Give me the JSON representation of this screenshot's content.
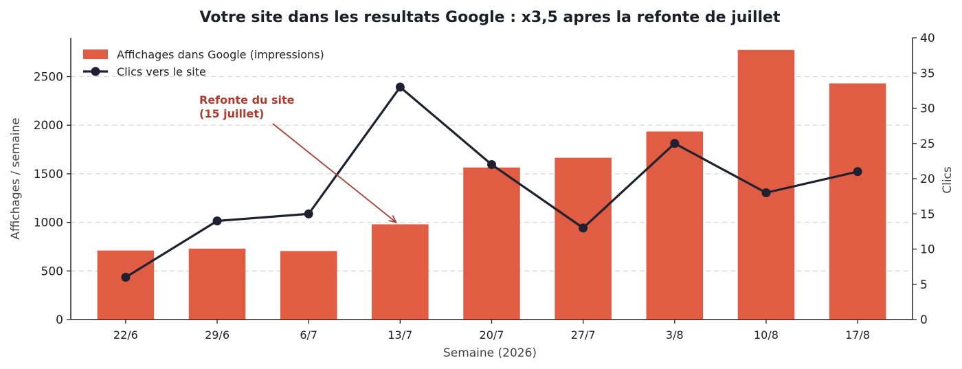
{
  "chart_data": {
    "type": "bar",
    "title": "Votre site dans les resultats Google : x3,5 apres la refonte de juillet",
    "xlabel": "Semaine (2026)",
    "ylabel": "Affichages / semaine",
    "ylabel_right": "Clics",
    "categories": [
      "22/6",
      "29/6",
      "6/7",
      "13/7",
      "20/7",
      "27/7",
      "3/8",
      "10/8",
      "17/8"
    ],
    "series": [
      {
        "name": "Affichages dans Google (impressions)",
        "type": "bar",
        "axis": "left",
        "color": "#e05c42",
        "values": [
          710,
          730,
          705,
          980,
          1565,
          1665,
          1935,
          2775,
          2430
        ]
      },
      {
        "name": "Clics vers le site",
        "type": "line",
        "axis": "right",
        "color": "#1f2030",
        "values": [
          6,
          14,
          15,
          33,
          22,
          13,
          25,
          18,
          21
        ]
      }
    ],
    "ylim_left": [
      0,
      2900
    ],
    "yticks_left": [
      0,
      500,
      1000,
      1500,
      2000,
      2500
    ],
    "ylim_right": [
      0,
      40
    ],
    "yticks_right": [
      0,
      5,
      10,
      15,
      20,
      25,
      30,
      35,
      40
    ],
    "grid": "horizontal dashed",
    "legend_position": "top-left",
    "annotation": {
      "lines": [
        "Refonte du site",
        "(15 juillet)"
      ],
      "target_category": "13/7",
      "target_value": 980,
      "color": "#b03a2e"
    }
  }
}
